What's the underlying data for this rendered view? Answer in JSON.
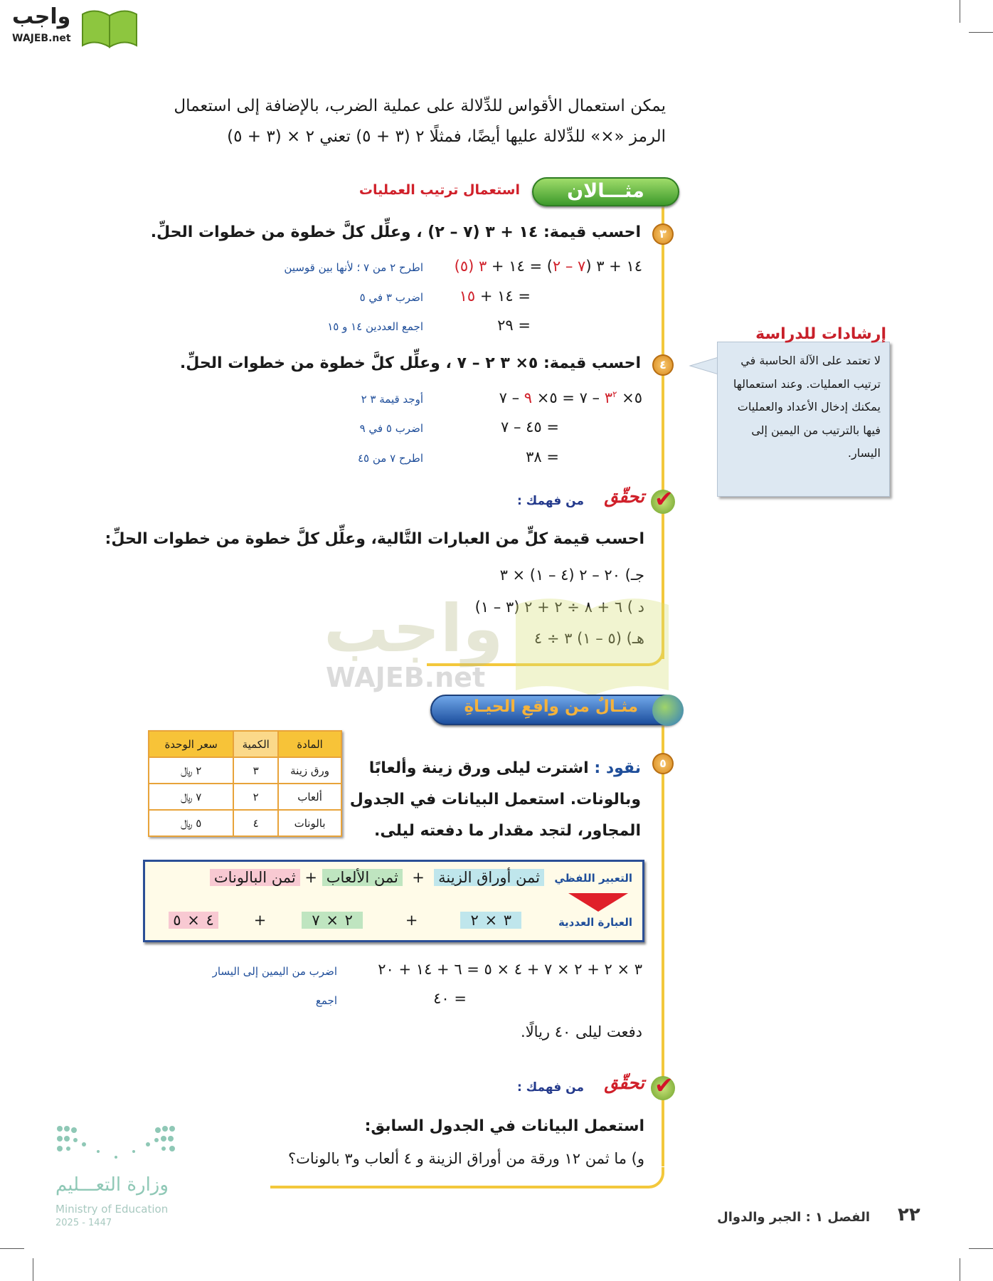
{
  "logo": {
    "arabic": "واجب",
    "latin": "WAJEB.net"
  },
  "intro": {
    "line1": "يمكن استعمال الأقواس للدِّلالة على عملية الضرب، بالإضافة إلى استعمال",
    "line2": "الرمز «×» للدِّلالة عليها أيضًا، فمثلًا ٢ (٣ + ٥) تعني ٢ × (٣ + ٥)"
  },
  "example": {
    "banner": "مثـــالان",
    "title": "استعمال ترتيب العمليات"
  },
  "ex3": {
    "number": "٣",
    "question": "احسب قيمة: ١٤ + ٣ (٧ – ٢) ، وعلِّل كلَّ خطوة من خطوات الحلِّ.",
    "step1": {
      "a": "١٤ + ٣ (",
      "b": "٧ – ٢",
      "c": ") = ١٤ + ",
      "d": "٣ (٥)",
      "note": "اطرح ٢ من ٧ ؛ لأنها بين قوسين"
    },
    "step2": {
      "a": "= ١٤ + ",
      "b": "١٥",
      "note": "اضرب ٣ في ٥"
    },
    "step3": {
      "a": "= ٢٩",
      "note": "اجمع العددين ١٤ و ١٥"
    }
  },
  "ex4": {
    "number": "٤",
    "question": "احسب قيمة: ٥× ٣ ٢ – ٧ ، وعلِّل كلَّ خطوة من خطوات الحلِّ.",
    "step1": {
      "a": "٥× ",
      "b": "٣",
      "c": "٢",
      "d": " – ٧ = ٥× ",
      "e": "٩",
      "f": " – ٧",
      "note": "أوجد قيمة ٣ ٢"
    },
    "step2": {
      "a": "= ٤٥ – ٧",
      "note": "اضرب ٥ في ٩"
    },
    "step3": {
      "a": "= ٣٨",
      "note": "اطرح ٧ من ٤٥"
    }
  },
  "check1": {
    "title": "تحقّق",
    "subtitle": "من فهمك :",
    "instruction": "احسب قيمة كلٍّ من العبارات التَّالية، وعلِّل كلَّ خطوة من خطوات الحلِّ:",
    "items": [
      "جـ) ٢٠ – ٢ (٤ – ١) × ٣",
      "د ) ٦ + ٨ ÷ ٢ + ٢ (٣ – ١)",
      "هـ) (٥ – ١) ٣ ÷ ٤"
    ]
  },
  "sidebar": {
    "title": "إرشادات للدراسة",
    "text": "لا تعتمد على الآلة الحاسبة في ترتيب العمليات. وعند استعمالها يمكنك إدخال الأعداد والعمليات فيها بالترتيب من اليمين إلى اليسار."
  },
  "watermark": {
    "arabic": "واجب",
    "latin": "WAJEB.net"
  },
  "real_life": {
    "banner": "مثـالٌ من واقعِ الحيـاةِ"
  },
  "table": {
    "headers": [
      "المادة",
      "الكمية",
      "سعر الوحدة"
    ],
    "rows": [
      [
        "ورق زينة",
        "٣",
        "٢ ﷼"
      ],
      [
        "ألعاب",
        "٢",
        "٧ ﷼"
      ],
      [
        "بالونات",
        "٤",
        "٥ ﷼"
      ]
    ]
  },
  "ex5": {
    "number": "٥",
    "label": "نقود :",
    "line1": "اشترت ليلى ورق زينة وألعابًا",
    "line2": "وبالونات. استعمل البيانات في الجدول",
    "line3": "المجاور، لتجد مقدار ما دفعته ليلى."
  },
  "expression": {
    "verbal_label": "التعبير اللفظي",
    "numeric_label": "العبارة العددية",
    "verbal": [
      "ثمن أوراق الزينة",
      "ثمن الألعاب",
      "ثمن البالونات"
    ],
    "plus": "+",
    "numeric": [
      "٣ × ٢",
      "٢ × ٧",
      "٤ × ٥"
    ]
  },
  "calc": {
    "line1": "٣ × ٢ + ٢ × ٧ + ٤ × ٥ = ٦ + ١٤ + ٢٠",
    "note1": "اضرب من اليمين إلى اليسار",
    "line2": "= ٤٠",
    "note2": "اجمع",
    "conclusion": "دفعت ليلى ٤٠ ريالًا."
  },
  "check2": {
    "title": "تحقّق",
    "subtitle": "من فهمك :",
    "instruction": "استعمل البيانات في الجدول السابق:",
    "question": "و)   ما ثمن ١٢ ورقة من أوراق الزينة و ٤ ألعاب و٣ بالونات؟"
  },
  "ministry": {
    "arabic": "وزارة التعـــليم",
    "english": "Ministry of Education",
    "year": "2025 - 1447"
  },
  "footer": {
    "page": "٢٢",
    "chapter": "الفصل ١ : الجبر والدوال"
  },
  "colors": {
    "accent_red": "#d0202a",
    "note_blue": "#1f4e9a",
    "rule_yellow": "#f3c83c",
    "table_orange": "#f7c338"
  }
}
